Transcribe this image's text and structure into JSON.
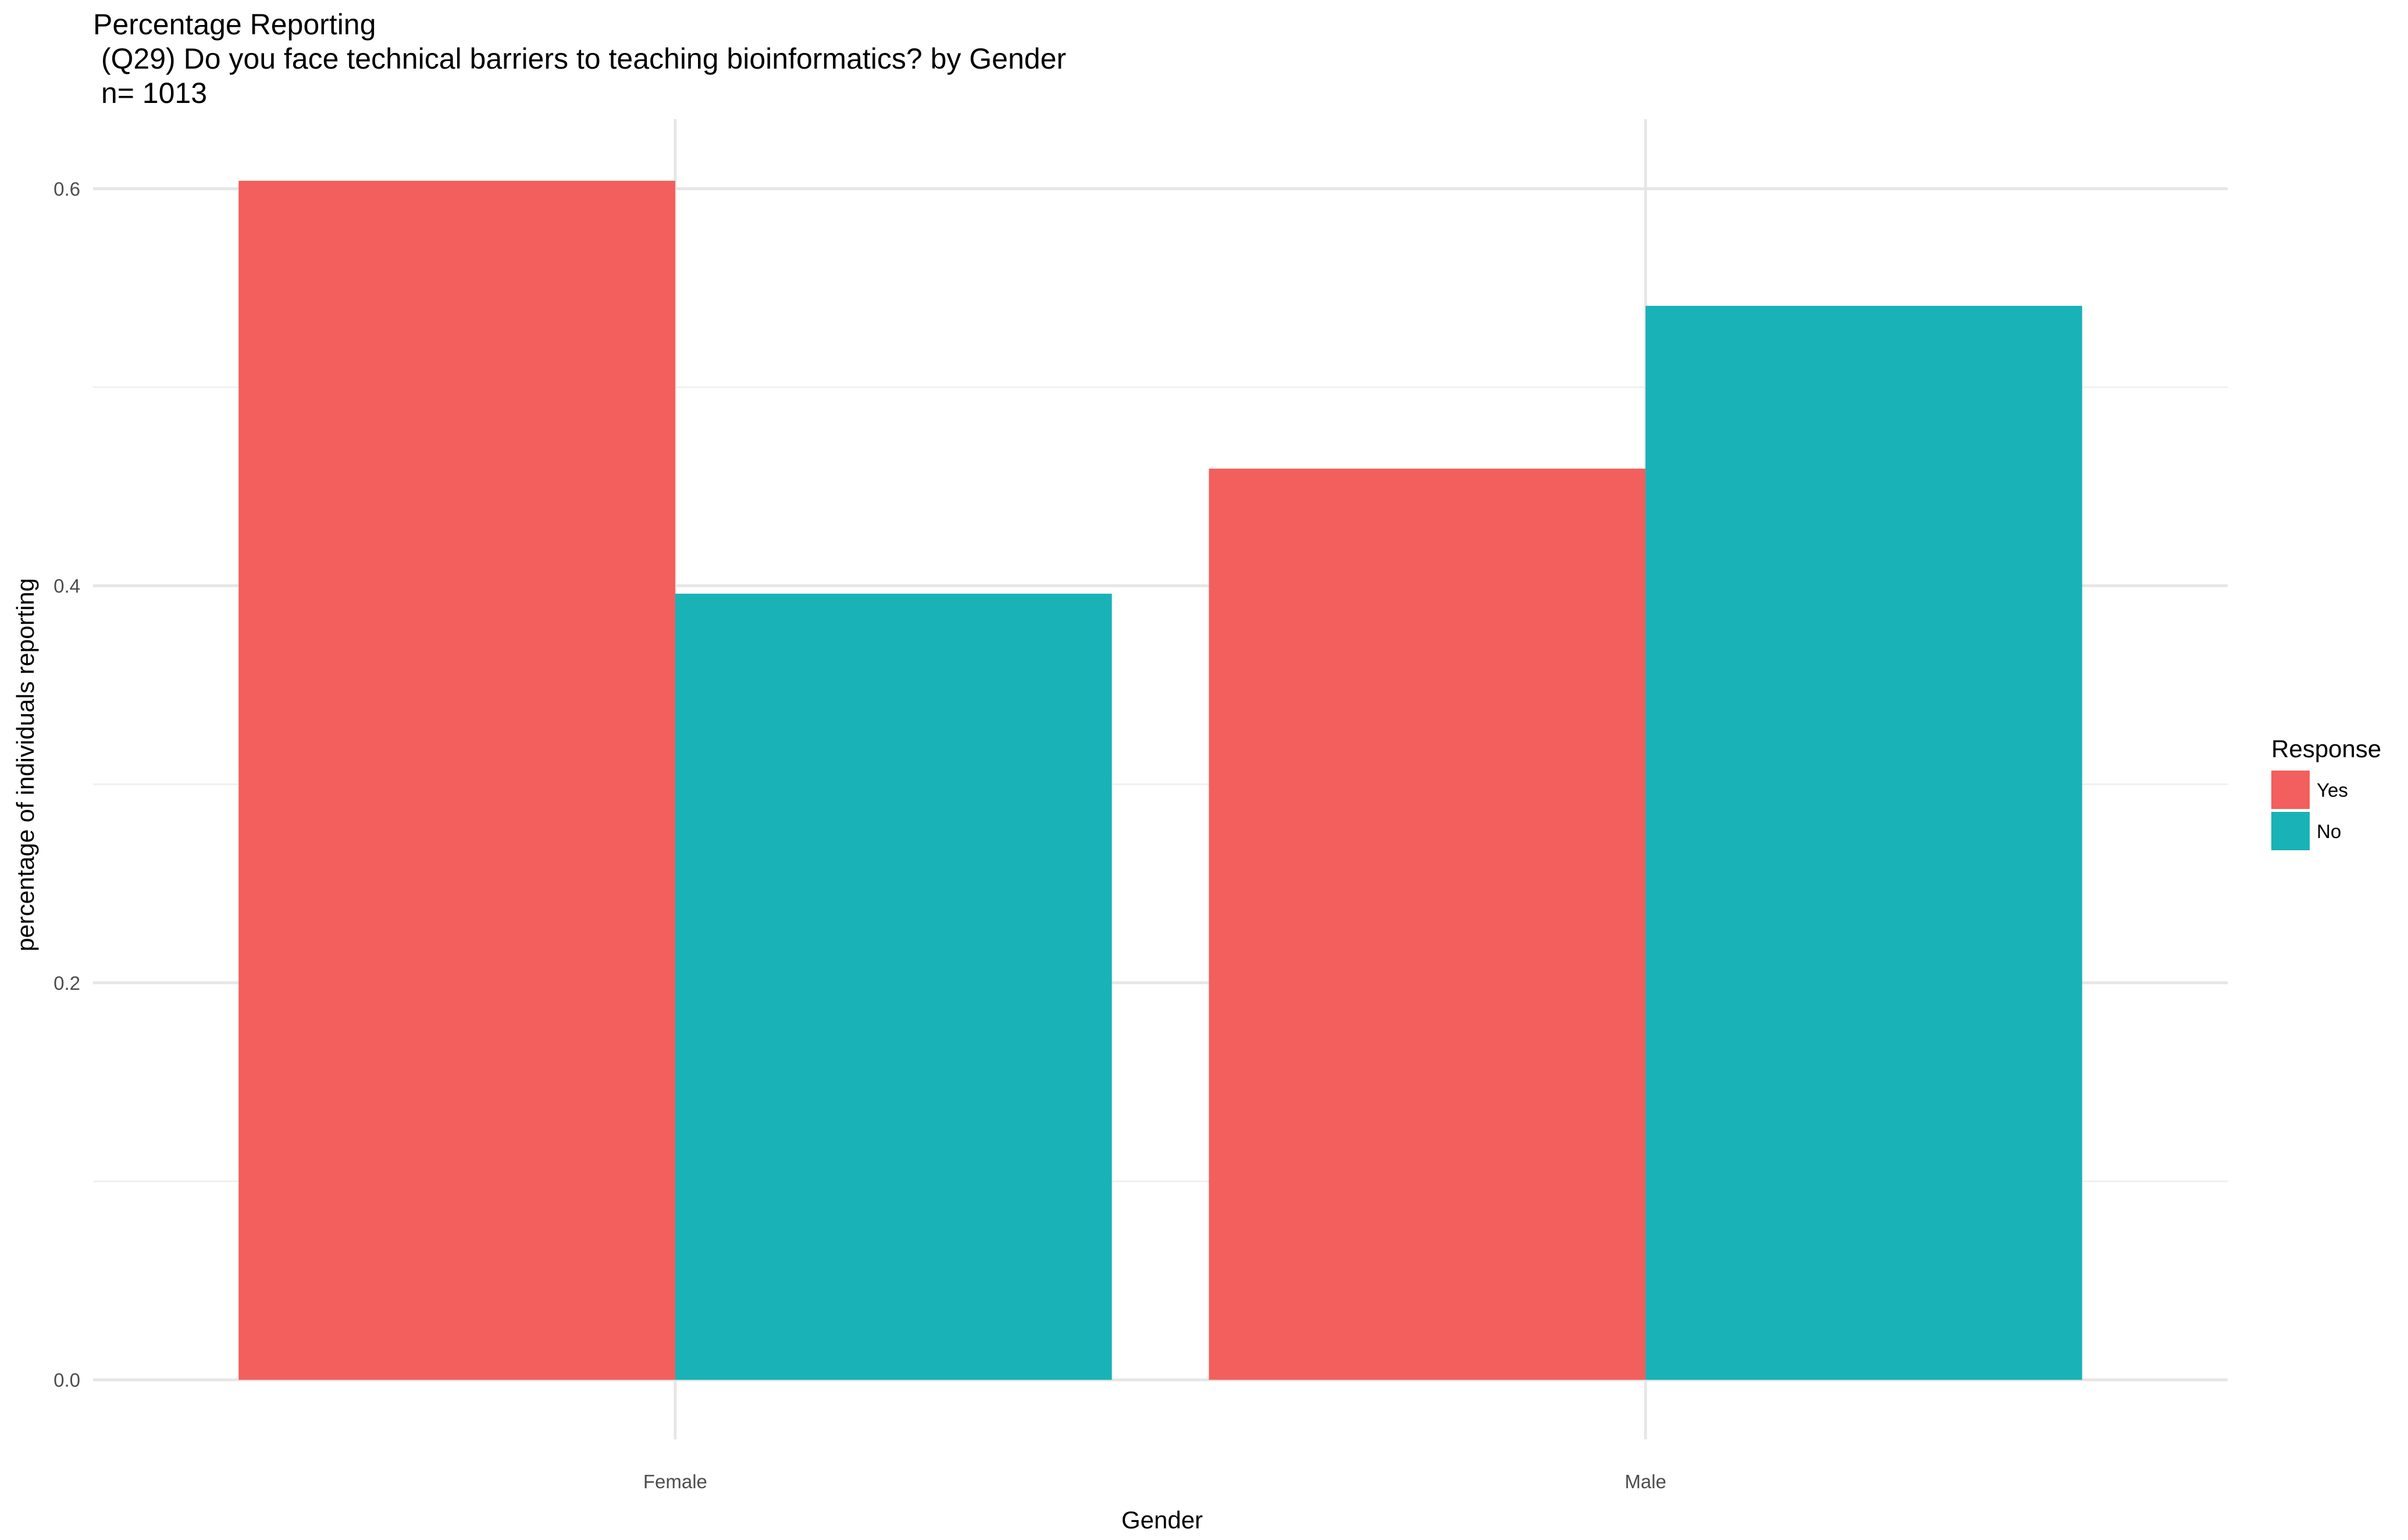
{
  "chart_data": {
    "type": "bar",
    "title_lines": [
      "Percentage Reporting",
      " (Q29) Do you face technical barriers to teaching bioinformatics? by Gender",
      " n= 1013"
    ],
    "xlabel": "Gender",
    "ylabel": "percentage of individuals reporting",
    "categories": [
      "Female",
      "Male"
    ],
    "series": [
      {
        "name": "Yes",
        "color": "#F25F5C",
        "values": [
          0.604,
          0.459
        ]
      },
      {
        "name": "No",
        "color": "#19B2B6",
        "values": [
          0.396,
          0.541
        ]
      }
    ],
    "ylim": [
      -0.03,
      0.635
    ],
    "yticks": [
      0.0,
      0.2,
      0.4,
      0.6
    ],
    "ytick_labels": [
      "0.0",
      "0.2",
      "0.4",
      "0.6"
    ],
    "minor_yticks": [
      0.1,
      0.3,
      0.5
    ],
    "grid": true,
    "legend": {
      "title": "Response",
      "position": "right",
      "entries": [
        "Yes",
        "No"
      ]
    },
    "colors": {
      "background": "#FFFFFF",
      "major_grid": "#E6E6E6",
      "minor_grid": "#F0F0F0",
      "axis_text": "#4D4D4D",
      "label_text": "#000000"
    }
  }
}
